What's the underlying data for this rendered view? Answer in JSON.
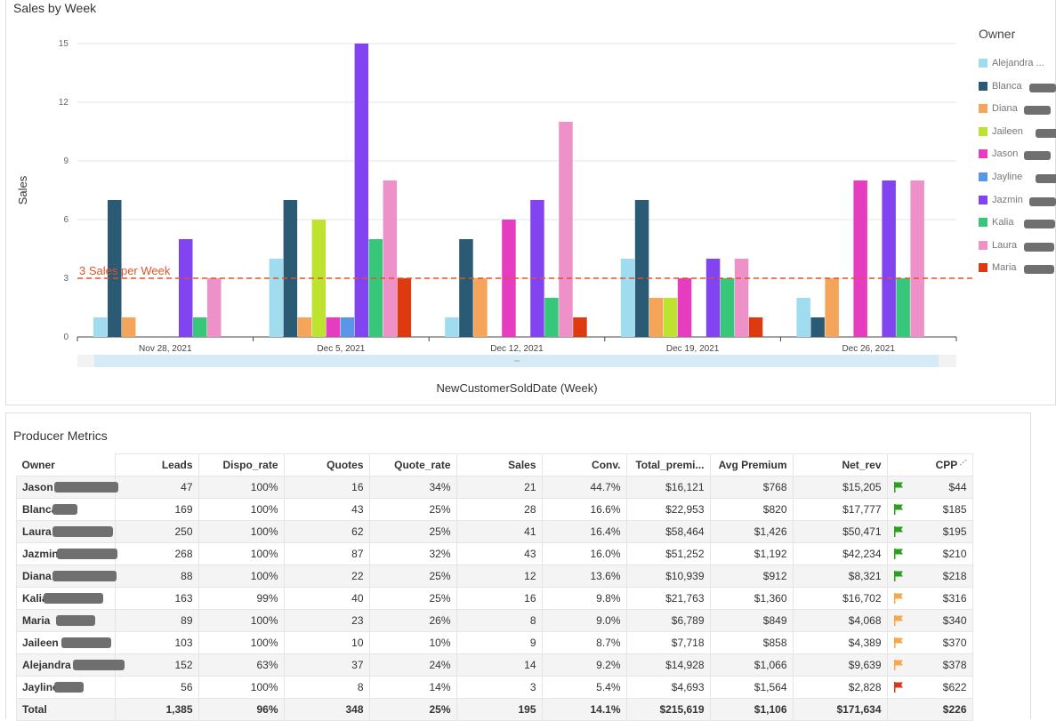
{
  "chart_panel": {
    "title": "Sales by Week",
    "legend_title": "Owner"
  },
  "chart_data": {
    "type": "bar",
    "title": "Sales by Week",
    "xlabel": "NewCustomerSoldDate (Week)",
    "ylabel": "Sales",
    "ylim": [
      0,
      15
    ],
    "yticks": [
      0,
      3,
      6,
      9,
      12,
      15
    ],
    "grid": true,
    "legend_placement": "right",
    "categories": [
      "Nov 28, 2021",
      "Dec 5, 2021",
      "Dec 12, 2021",
      "Dec 19, 2021",
      "Dec 26, 2021"
    ],
    "series": [
      {
        "name": "Alejandra ...",
        "color": "#9fdcef",
        "values": [
          1,
          4,
          1,
          4,
          2
        ]
      },
      {
        "name": "Blanca",
        "color": "#2b5a74",
        "values": [
          7,
          7,
          5,
          7,
          1
        ]
      },
      {
        "name": "Diana",
        "color": "#f5a55a",
        "values": [
          1,
          1,
          3,
          2,
          3
        ]
      },
      {
        "name": "Jaileen",
        "color": "#bde230",
        "values": [
          0,
          6,
          0,
          2,
          0
        ]
      },
      {
        "name": "Jason",
        "color": "#e63cbf",
        "values": [
          0,
          1,
          6,
          3,
          8
        ]
      },
      {
        "name": "Jayline",
        "color": "#5a96e6",
        "values": [
          0,
          1,
          0,
          0,
          0
        ]
      },
      {
        "name": "Jazmin",
        "color": "#8244f0",
        "values": [
          5,
          15,
          7,
          4,
          8
        ]
      },
      {
        "name": "Kalia",
        "color": "#36c77a",
        "values": [
          1,
          5,
          2,
          3,
          3
        ]
      },
      {
        "name": "Laura",
        "color": "#ef91c9",
        "values": [
          3,
          8,
          11,
          4,
          8
        ]
      },
      {
        "name": "Maria",
        "color": "#dd3a10",
        "values": [
          0,
          3,
          1,
          1,
          0
        ]
      }
    ],
    "reference_line": {
      "value": 3,
      "label": "3 Sales per Week",
      "color": "#e0532a"
    }
  },
  "table_panel": {
    "title": "Producer Metrics",
    "columns": [
      "Owner",
      "Leads",
      "Dispo_rate",
      "Quotes",
      "Quote_rate",
      "Sales",
      "Conv.",
      "Total_premi...",
      "Avg Premium",
      "Net_rev",
      "CPP"
    ],
    "rows": [
      {
        "owner": "Jason",
        "cells": [
          "47",
          "100%",
          "16",
          "34%",
          "21",
          "44.7%",
          "$16,121",
          "$768",
          "$15,205",
          "$44"
        ],
        "flag": "#2ca01c"
      },
      {
        "owner": "Blanca",
        "cells": [
          "169",
          "100%",
          "43",
          "25%",
          "28",
          "16.6%",
          "$22,953",
          "$820",
          "$17,777",
          "$185"
        ],
        "flag": "#2ca01c"
      },
      {
        "owner": "Laura",
        "cells": [
          "250",
          "100%",
          "62",
          "25%",
          "41",
          "16.4%",
          "$58,464",
          "$1,426",
          "$50,471",
          "$195"
        ],
        "flag": "#2ca01c"
      },
      {
        "owner": "Jazmin",
        "cells": [
          "268",
          "100%",
          "87",
          "32%",
          "43",
          "16.0%",
          "$51,252",
          "$1,192",
          "$42,234",
          "$210"
        ],
        "flag": "#2ca01c"
      },
      {
        "owner": "Diana",
        "cells": [
          "88",
          "100%",
          "22",
          "25%",
          "12",
          "13.6%",
          "$10,939",
          "$912",
          "$8,321",
          "$218"
        ],
        "flag": "#2ca01c"
      },
      {
        "owner": "Kalia",
        "cells": [
          "163",
          "99%",
          "40",
          "25%",
          "16",
          "9.8%",
          "$21,763",
          "$1,360",
          "$16,702",
          "$316"
        ],
        "flag": "#f7a84a"
      },
      {
        "owner": "Maria",
        "cells": [
          "89",
          "100%",
          "23",
          "26%",
          "8",
          "9.0%",
          "$6,789",
          "$849",
          "$4,068",
          "$340"
        ],
        "flag": "#f7a84a"
      },
      {
        "owner": "Jaileen",
        "cells": [
          "103",
          "100%",
          "10",
          "10%",
          "9",
          "8.7%",
          "$7,718",
          "$858",
          "$4,389",
          "$370"
        ],
        "flag": "#f7a84a"
      },
      {
        "owner": "Alejandra",
        "cells": [
          "152",
          "63%",
          "37",
          "24%",
          "14",
          "9.2%",
          "$14,928",
          "$1,066",
          "$9,639",
          "$378"
        ],
        "flag": "#f7a84a"
      },
      {
        "owner": "Jayline",
        "cells": [
          "56",
          "100%",
          "8",
          "14%",
          "3",
          "5.4%",
          "$4,693",
          "$1,564",
          "$2,828",
          "$622"
        ],
        "flag": "#d9371a"
      }
    ],
    "total": {
      "owner": "Total",
      "cells": [
        "1,385",
        "96%",
        "348",
        "25%",
        "195",
        "14.1%",
        "$215,619",
        "$1,106",
        "$171,634",
        "$226"
      ]
    }
  }
}
